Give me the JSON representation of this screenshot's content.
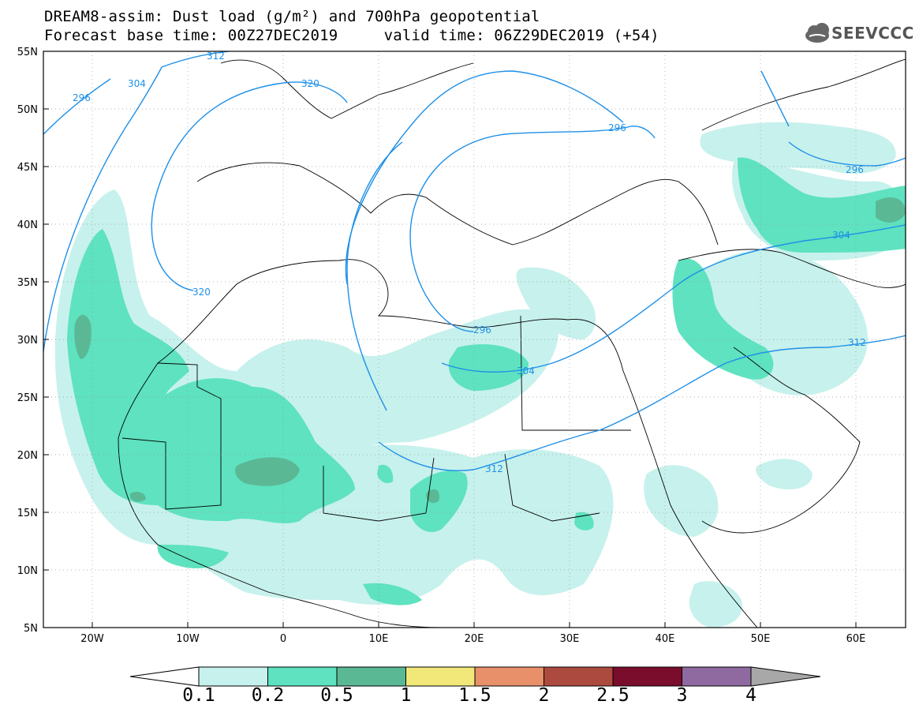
{
  "title": {
    "line1": "DREAM8-assim: Dust load (g/m²) and 700hPa geopotential",
    "line2": "Forecast base time: 00Z27DEC2019     valid time: 06Z29DEC2019 (+54)"
  },
  "logo": {
    "text": "SEEVCCC",
    "icon": "cloud-icon"
  },
  "axes": {
    "lat_labels": [
      "55N",
      "50N",
      "45N",
      "40N",
      "35N",
      "30N",
      "25N",
      "20N",
      "15N",
      "10N",
      "5N"
    ],
    "lon_labels": [
      "20W",
      "10W",
      "0",
      "10E",
      "20E",
      "30E",
      "40E",
      "50E",
      "60E"
    ]
  },
  "contour_labels": [
    "296",
    "304",
    "312",
    "320",
    "296",
    "296",
    "304",
    "312",
    "304",
    "312",
    "320",
    "296"
  ],
  "colorbar": {
    "ticks": [
      "0.1",
      "0.2",
      "0.5",
      "1",
      "1.5",
      "2",
      "2.5",
      "3",
      "4"
    ],
    "colors": [
      "#c7f1ec",
      "#5ee2bf",
      "#5bb895",
      "#f2e87a",
      "#e8906a",
      "#ad4a3f",
      "#7a0c2c",
      "#8f6aa0"
    ],
    "under_color": "#ffffff",
    "over_color": "#a8a8a8"
  },
  "colors": {
    "contour_line": "#1e90e8",
    "dust_light": "#c7f1ec",
    "dust_mid": "#5ee2bf",
    "dust_dark": "#5bb895"
  }
}
